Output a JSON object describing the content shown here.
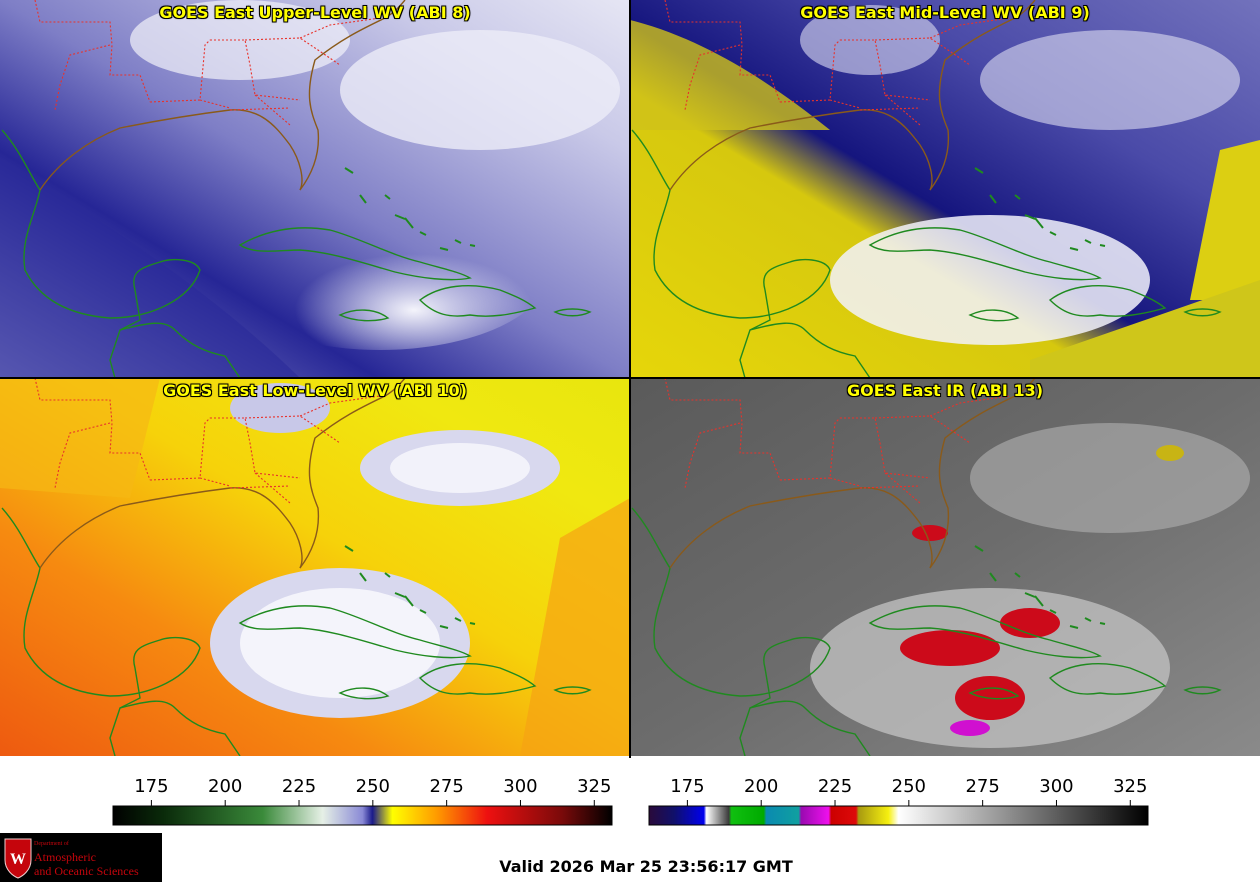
{
  "panels": [
    {
      "title": "GOES East Upper-Level WV (ABI 8)",
      "palette": "wv"
    },
    {
      "title": "GOES East Mid-Level WV (ABI 9)",
      "palette": "wv"
    },
    {
      "title": "GOES East Low-Level WV (ABI 10)",
      "palette": "wv"
    },
    {
      "title": "GOES East IR (ABI 13)",
      "palette": "ir"
    }
  ],
  "colorbars": {
    "left": {
      "ticks": [
        "175",
        "200",
        "225",
        "250",
        "275",
        "300",
        "325"
      ],
      "min": 162,
      "max": 331
    },
    "right": {
      "ticks": [
        "175",
        "200",
        "225",
        "250",
        "275",
        "300",
        "325"
      ],
      "min": 162,
      "max": 331
    }
  },
  "logo": {
    "dept": "Department of",
    "line1": "Atmospheric",
    "line2": "and Oceanic Sciences"
  },
  "valid_time": "Valid 2026 Mar 25 23:56:17 GMT",
  "colors": {
    "state_borders": "#e8322b",
    "coastlines": "#1f8a1f",
    "title_text": "#ffff00"
  }
}
